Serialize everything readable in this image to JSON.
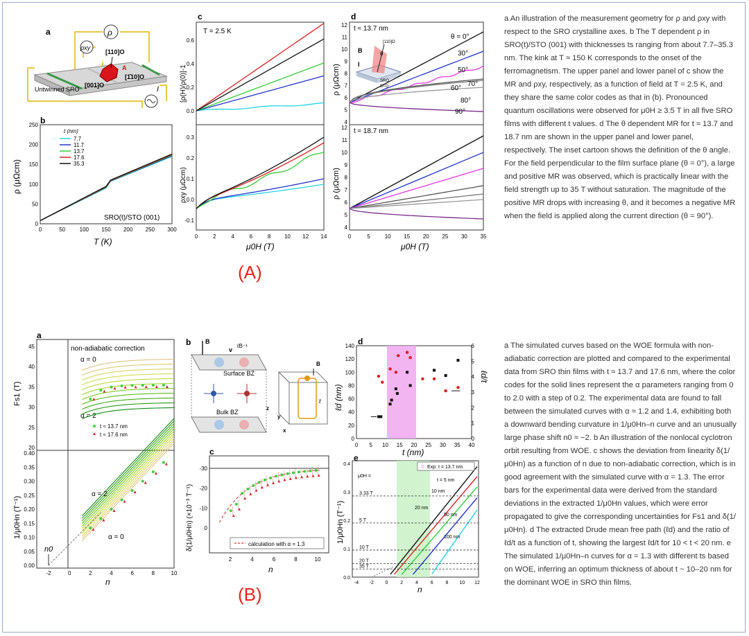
{
  "figure_labels": {
    "A": "(A)",
    "B": "(B)"
  },
  "caption_A": {
    "text": "a An illustration of the measurement geometry for ρ and ρxy with respect to the SRO crystalline axes. b The T dependent ρ in SRO(t)/STO (001) with thicknesses ts ranging from about 7.7–35.3 nm. The kink at T ≈ 150 K corresponds to the onset of the ferromagnetism. The upper panel and lower panel of c show the MR and ρxy, respectively, as a function of field at T = 2.5 K, and they share the same color codes as that in (b). Pronounced quantum oscillations were observed for μ0H ≥ 3.5 T in all five SRO films with different t values. d The θ dependent MR for t ≈ 13.7 and 18.7 nm are shown in the upper panel and lower panel, respectively. The inset cartoon shows the definition of the θ angle. For the field perpendicular to the film surface plane (θ = 0°), a large and positive MR was observed, which is practically linear with the field strength up to 35 T without saturation. The magnitude of the positive MR drops with increasing θ, and it becomes a negative MR when the field is applied along the current direction (θ = 90°)."
  },
  "caption_B": {
    "text": "a The simulated curves based on the WOE formula with non-adiabatic correction are plotted and compared to the experimental data from SRO thin films with t ≈ 13.7 and 17.6 nm, where the color codes for the solid lines represent the α parameters ranging from 0 to 2.0 with a step of 0.2. The experimental data are found to fall between the simulated curves with α ≈ 1.2 and 1.4, exhibiting both a downward bending curvature in 1/μ0Hn–n curve and an unusually large phase shift n0 ≈ −2. b An illustration of the nonlocal cyclotron orbit resulting from WOE. c shows the deviation from linearity δ(1/μ0Hn) as a function of n due to non-adiabatic correction, which is in good agreement with the simulated curve with α = 1.3. The error bars for the experimental data were derived from the standard deviations in the extracted 1/μ0Hn values, which were error propagated to give the corresponding uncertainties for Fs1 and δ(1/μ0Hn). d The extracted Drude mean free path (ℓd) and the ratio of ℓd/t as a function of t, showing the largest ℓd/t for 10 < t < 20 nm. e The simulated 1/μ0Hn–n curves for α = 1.3 with different ts based on WOE, inferring an optimum thickness of about t ~ 10–20 nm for the dominant WOE in SRO thin films."
  },
  "fig_A": {
    "a": {
      "label": "a",
      "rho": "ρ",
      "rhoxy": "ρxy",
      "dir110": "[110]O",
      "dir1m10": "[1̄10]O",
      "dir001": "[001]O",
      "A": "A",
      "film": "Untwinned SRO",
      "I": "I"
    },
    "b": {
      "label": "b",
      "xlabel": "T (K)",
      "ylabel": "ρ (μΩcm)",
      "legend_title": "t (nm)",
      "legend": [
        "7.7",
        "11.7",
        "13.7",
        "17.6",
        "35.3"
      ],
      "note": "SRO(t)/STO (001)",
      "xticks": [
        "0",
        "50",
        "100",
        "150",
        "200",
        "250",
        "300"
      ],
      "yticks": [
        "0",
        "50",
        "100",
        "150",
        "200",
        "250"
      ]
    },
    "c": {
      "label": "c",
      "note": "T = 2.5 K",
      "ylabel_top": "[ρ(H)/ρ(0)]-1",
      "ylabel_bottom": "ρxy (μΩcm)",
      "xlabel": "μ0H (T)",
      "xticks": [
        "0",
        "2",
        "4",
        "6",
        "8",
        "10",
        "12",
        "14"
      ],
      "yticks_top": [
        "0.0",
        "0.2",
        "0.4",
        "0.6"
      ],
      "yticks_bottom": [
        "-0.1",
        "0.0",
        "0.1",
        "0.2",
        "0.3"
      ]
    },
    "d": {
      "label": "d",
      "note_top": "t ≈ 13.7 nm",
      "note_bottom": "t ≈ 18.7 nm",
      "ylabel": "ρ (μΩcm)",
      "xlabel": "μ0H (T)",
      "angles": [
        "θ = 0°",
        "30°",
        "50°",
        "60°",
        "70°",
        "80°",
        "90°"
      ],
      "xticks": [
        "0",
        "5",
        "10",
        "15",
        "20",
        "25",
        "30",
        "35"
      ],
      "yticks_top": [
        "4",
        "5",
        "6",
        "7",
        "8",
        "9",
        "10",
        "11",
        "12"
      ],
      "yticks_bottom": [
        "4",
        "5",
        "6",
        "7",
        "8",
        "9",
        "10",
        "11",
        "12"
      ],
      "inset": {
        "B": "B",
        "I": "I",
        "theta": "θ",
        "dir": "[110]O",
        "sro": "SRO",
        "sto": "STO"
      }
    }
  },
  "fig_B": {
    "a": {
      "label": "a",
      "note": "non-adiabatic correction",
      "alpha0": "α = 0",
      "alpha2": "α = 2",
      "ylabel_top": "Fs1 (T)",
      "ylabel_bottom": "1/μ0Hn (T⁻¹)",
      "xlabel": "n",
      "legend": [
        "t ≈ 13.7 nm",
        "t ≈ 17.6 nm"
      ],
      "n0": "n0",
      "yticks_top": [
        "20",
        "25",
        "30",
        "35",
        "40",
        "45"
      ],
      "yticks_bottom": [
        "0.00",
        "0.05",
        "0.10",
        "0.15",
        "0.20",
        "0.25",
        "0.30",
        "0.35",
        "0.40"
      ],
      "xticks": [
        "-2",
        "0",
        "2",
        "4",
        "6",
        "8",
        "10"
      ]
    },
    "b": {
      "label": "b",
      "B": "B",
      "v": "v",
      "lB": "ℓB⁻¹",
      "surface": "Surface BZ",
      "bulk": "Bulk BZ",
      "z": "z",
      "y": "y",
      "x": "x",
      "B2": "B",
      "t": "t"
    },
    "c": {
      "label": "c",
      "ylabel": "δ(1/μ0Hn) (×10⁻³ T⁻¹)",
      "xlabel": "n",
      "legend": "calculation with α = 1.3",
      "xticks": [
        "2",
        "4",
        "6",
        "8",
        "10"
      ],
      "yticks": [
        "0",
        "-10",
        "-20",
        "-30"
      ]
    },
    "d": {
      "label": "d",
      "ylabel_left": "ℓd (nm)",
      "ylabel_right": "ℓd/t",
      "xlabel": "t (nm)",
      "xticks": [
        "0",
        "5",
        "10",
        "15",
        "20",
        "25",
        "30",
        "35",
        "40"
      ],
      "yticks_left": [
        "0",
        "20",
        "40",
        "60",
        "80",
        "100",
        "120",
        "140"
      ],
      "yticks_right": [
        "0",
        "1",
        "2",
        "3",
        "4",
        "5",
        "6"
      ]
    },
    "e": {
      "label": "e",
      "legend": "Exp: t = 13.7 nm",
      "ylabel": "1/μ0Hn (T⁻¹)",
      "xlabel": "n",
      "field_title": "μ0H =",
      "fields": [
        "3.33 T",
        "5 T",
        "10 T",
        "20 T",
        "35 T"
      ],
      "thickness": [
        "t = 5 nm",
        "10 nm",
        "20 nm",
        "50 nm",
        "100 nm"
      ],
      "xticks": [
        "-4",
        "-2",
        "0",
        "2",
        "4",
        "6",
        "8",
        "10",
        "12"
      ],
      "yticks": [
        "0.0",
        "0.1",
        "0.2",
        "0.3",
        "0.4"
      ]
    }
  }
}
